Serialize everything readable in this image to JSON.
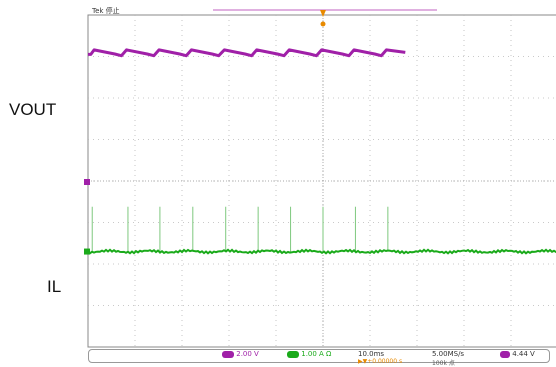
{
  "labels": {
    "vout": "VOUT",
    "il": "IL"
  },
  "header": {
    "trigger_status": "Tek 停止"
  },
  "colors": {
    "ch1": "#a020a8",
    "ch2": "#1aaa1a",
    "ch2_spike": "#7ec87e",
    "trigger": "#e88a00",
    "grid": "#b8b8b8"
  },
  "status_bar": {
    "ch1_scale": "2.00 V",
    "ch2_scale": "1.00 A Ω",
    "timebase": "10.0ms",
    "sample_rate": "5.00MS/s",
    "record": "100k 点",
    "trigger_level": "4.44 V",
    "trigger_position": "▶▼+0.00000 s"
  },
  "chart_data": {
    "type": "line",
    "title": "",
    "xlabel": "",
    "ylabel": "",
    "x_divisions": 10,
    "y_divisions": 8,
    "xlim": [
      0,
      100
    ],
    "series": [
      {
        "name": "VOUT",
        "values_description": "sawtooth ripple",
        "points": [
          [
            0,
            7.05
          ],
          [
            0.6,
            7.05
          ],
          [
            1.3,
            7.16
          ],
          [
            5.7,
            7.06
          ],
          [
            7.1,
            7.02
          ],
          [
            8.2,
            7.16
          ],
          [
            12.6,
            7.06
          ],
          [
            14,
            7.02
          ],
          [
            15.1,
            7.16
          ],
          [
            19.5,
            7.06
          ],
          [
            20.9,
            7.02
          ],
          [
            22,
            7.16
          ],
          [
            26.4,
            7.06
          ],
          [
            27.8,
            7.02
          ],
          [
            29,
            7.16
          ],
          [
            33.4,
            7.06
          ],
          [
            34.8,
            7.02
          ],
          [
            35.9,
            7.16
          ],
          [
            40.3,
            7.06
          ],
          [
            41.7,
            7.02
          ],
          [
            42.8,
            7.16
          ],
          [
            47.2,
            7.06
          ],
          [
            48.6,
            7.02
          ],
          [
            49.7,
            7.16
          ],
          [
            54.1,
            7.06
          ],
          [
            55.5,
            7.02
          ],
          [
            56.6,
            7.16
          ],
          [
            61,
            7.06
          ],
          [
            62.4,
            7.02
          ],
          [
            63.5,
            7.16
          ],
          [
            67.5,
            7.1
          ]
        ]
      },
      {
        "name": "IL",
        "baseline": 0,
        "spikes_x": [
          0.9,
          8.5,
          15.3,
          22.3,
          29.3,
          36.2,
          43.1,
          50,
          56.9,
          63.8
        ],
        "spike_height_div": 1.2
      }
    ]
  }
}
